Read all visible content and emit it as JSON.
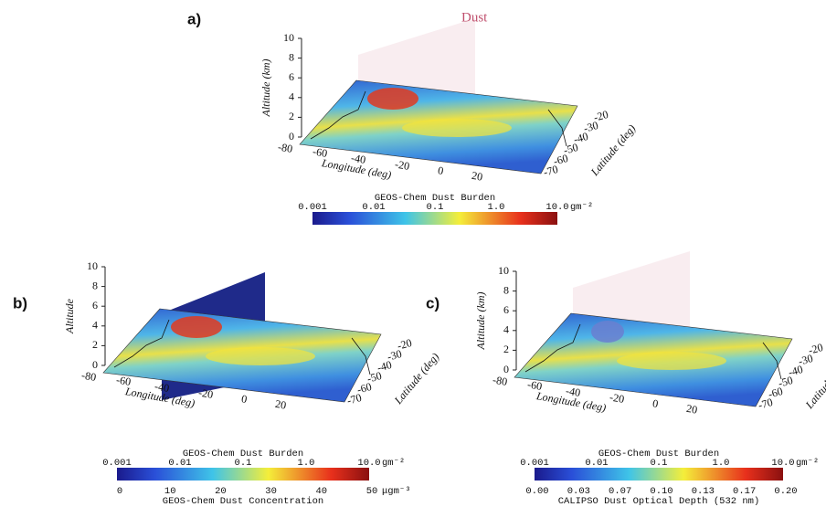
{
  "panels": [
    {
      "label": "a)",
      "title": "Dust",
      "y_label": "Altitude (km)",
      "x_label": "Longitude (deg)",
      "z_label": "Latitude (deg)",
      "y_ticks": [
        "0",
        "2",
        "4",
        "6",
        "8",
        "10"
      ],
      "x_ticks": [
        "-80",
        "-60",
        "-40",
        "-20",
        "0",
        "20"
      ],
      "z_ticks": [
        "-20",
        "-30",
        "-40",
        "-50",
        "-60",
        "-70"
      ],
      "colorbars": [
        {
          "title": "GEOS-Chem Dust Burden",
          "ticks": [
            "0.001",
            "0.01",
            "0.1",
            "1.0",
            "10.0"
          ],
          "unit": "gm⁻²"
        }
      ]
    },
    {
      "label": "b)",
      "y_label": "Altitude",
      "x_label": "Longitude (deg)",
      "z_label": "Latitude (deg)",
      "y_ticks": [
        "0",
        "2",
        "4",
        "6",
        "8",
        "10"
      ],
      "x_ticks": [
        "-80",
        "-60",
        "-40",
        "-20",
        "0",
        "20"
      ],
      "z_ticks": [
        "-20",
        "-30",
        "-40",
        "-50",
        "-60",
        "-70"
      ],
      "colorbars": [
        {
          "title": "GEOS-Chem Dust Burden",
          "ticks": [
            "0.001",
            "0.01",
            "0.1",
            "1.0",
            "10.0"
          ],
          "unit": "gm⁻²"
        },
        {
          "ticks": [
            "0",
            "10",
            "20",
            "30",
            "40",
            "50"
          ],
          "unit": "μgm⁻³",
          "title": "GEOS-Chem Dust Concentration"
        }
      ]
    },
    {
      "label": "c)",
      "y_label": "Altitude (km)",
      "x_label": "Longitude (deg)",
      "z_label": "Latitude (deg)",
      "y_ticks": [
        "0",
        "2",
        "4",
        "6",
        "8",
        "10"
      ],
      "x_ticks": [
        "-80",
        "-60",
        "-40",
        "-20",
        "0",
        "20"
      ],
      "z_ticks": [
        "-20",
        "-30",
        "-40",
        "-50",
        "-60",
        "-70"
      ],
      "colorbars": [
        {
          "title": "GEOS-Chem Dust Burden",
          "ticks": [
            "0.001",
            "0.01",
            "0.1",
            "1.0",
            "10.0"
          ],
          "unit": "gm⁻²"
        },
        {
          "ticks": [
            "0.00",
            "0.03",
            "0.07",
            "0.10",
            "0.13",
            "0.17",
            "0.20"
          ],
          "title": "CALIPSO Dust Optical Depth (532 nm)"
        }
      ]
    }
  ]
}
